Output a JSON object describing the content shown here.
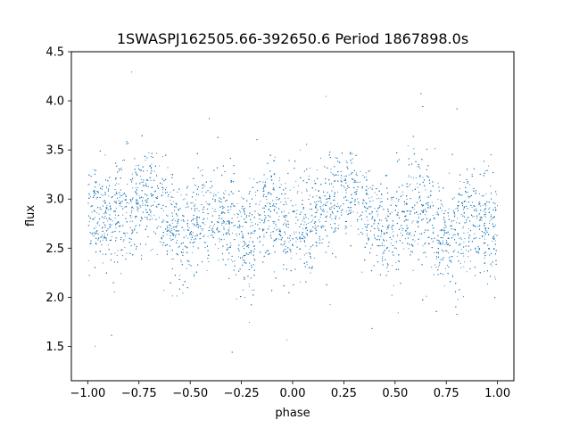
{
  "chart_data": {
    "type": "scatter",
    "title": "1SWASPJ162505.66-392650.6 Period 1867898.0s",
    "xlabel": "phase",
    "ylabel": "flux",
    "xlim": [
      -1.08,
      1.08
    ],
    "ylim": [
      1.15,
      4.5
    ],
    "xticks": [
      -1.0,
      -0.75,
      -0.5,
      -0.25,
      0.0,
      0.25,
      0.5,
      0.75,
      1.0
    ],
    "xtick_labels": [
      "−1.00",
      "−0.75",
      "−0.50",
      "−0.25",
      "0.00",
      "0.25",
      "0.50",
      "0.75",
      "1.00"
    ],
    "yticks": [
      1.5,
      2.0,
      2.5,
      3.0,
      3.5,
      4.0,
      4.5
    ],
    "ytick_labels": [
      "1.5",
      "2.0",
      "2.5",
      "3.0",
      "3.5",
      "4.0",
      "4.5"
    ],
    "grid": false,
    "marker_color": "#1f77b4",
    "series": [
      {
        "x_range": [
          -1.0,
          1.0
        ],
        "y_mean": 2.8,
        "y_typical_range": [
          2.2,
          3.5
        ],
        "y_outlier_range": [
          1.35,
          4.35
        ],
        "point_count": 9000,
        "clusters": [
          {
            "x": -1.0,
            "y_center": 2.85
          },
          {
            "x": -0.95,
            "y_center": 2.75
          },
          {
            "x": -0.88,
            "y_center": 2.8
          },
          {
            "x": -0.82,
            "y_center": 2.9
          },
          {
            "x": -0.75,
            "y_center": 3.0
          },
          {
            "x": -0.68,
            "y_center": 3.05
          },
          {
            "x": -0.6,
            "y_center": 2.75
          },
          {
            "x": -0.55,
            "y_center": 2.6
          },
          {
            "x": -0.5,
            "y_center": 2.65
          },
          {
            "x": -0.45,
            "y_center": 2.8
          },
          {
            "x": -0.38,
            "y_center": 2.85
          },
          {
            "x": -0.3,
            "y_center": 2.7
          },
          {
            "x": -0.25,
            "y_center": 2.6
          },
          {
            "x": -0.2,
            "y_center": 2.55
          },
          {
            "x": -0.15,
            "y_center": 2.8
          },
          {
            "x": -0.1,
            "y_center": 2.9
          },
          {
            "x": -0.05,
            "y_center": 2.75
          },
          {
            "x": 0.0,
            "y_center": 2.7
          },
          {
            "x": 0.05,
            "y_center": 2.8
          },
          {
            "x": 0.12,
            "y_center": 2.9
          },
          {
            "x": 0.18,
            "y_center": 2.95
          },
          {
            "x": 0.25,
            "y_center": 3.0
          },
          {
            "x": 0.3,
            "y_center": 3.05
          },
          {
            "x": 0.37,
            "y_center": 2.85
          },
          {
            "x": 0.45,
            "y_center": 2.65
          },
          {
            "x": 0.5,
            "y_center": 2.7
          },
          {
            "x": 0.55,
            "y_center": 2.85
          },
          {
            "x": 0.62,
            "y_center": 2.9
          },
          {
            "x": 0.68,
            "y_center": 2.7
          },
          {
            "x": 0.75,
            "y_center": 2.55
          },
          {
            "x": 0.8,
            "y_center": 2.7
          },
          {
            "x": 0.86,
            "y_center": 2.85
          },
          {
            "x": 0.92,
            "y_center": 2.8
          },
          {
            "x": 1.0,
            "y_center": 2.6
          }
        ]
      }
    ]
  }
}
